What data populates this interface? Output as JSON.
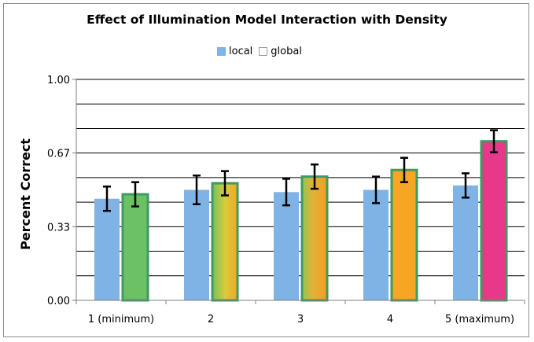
{
  "chart_data": {
    "type": "bar",
    "title": "Effect of Illumination Model Interaction with Density",
    "xlabel": "",
    "ylabel": "Percent Correct",
    "ylim": [
      0,
      1
    ],
    "yticks": [
      "0.00",
      "0.33",
      "0.67",
      "1.00"
    ],
    "ytick_values": [
      0,
      0.333,
      0.667,
      1.0
    ],
    "grid": true,
    "legend_position": "top",
    "categories": [
      "1 (minimum)",
      "2",
      "3",
      "4",
      "5 (maximum)"
    ],
    "series": [
      {
        "name": "local",
        "color": "#7fb2e5",
        "values": [
          0.46,
          0.5,
          0.49,
          0.5,
          0.52
        ],
        "error": [
          0.055,
          0.065,
          0.06,
          0.06,
          0.055
        ]
      },
      {
        "name": "global",
        "colors": [
          "#6cc165",
          "gradient-green-yellow",
          "gradient-green-orange",
          "#f5a623",
          "#e8388a"
        ],
        "values": [
          0.48,
          0.53,
          0.56,
          0.59,
          0.72
        ],
        "error": [
          0.055,
          0.055,
          0.055,
          0.055,
          0.05
        ]
      }
    ]
  },
  "legend": {
    "local": "local",
    "global": "global"
  }
}
